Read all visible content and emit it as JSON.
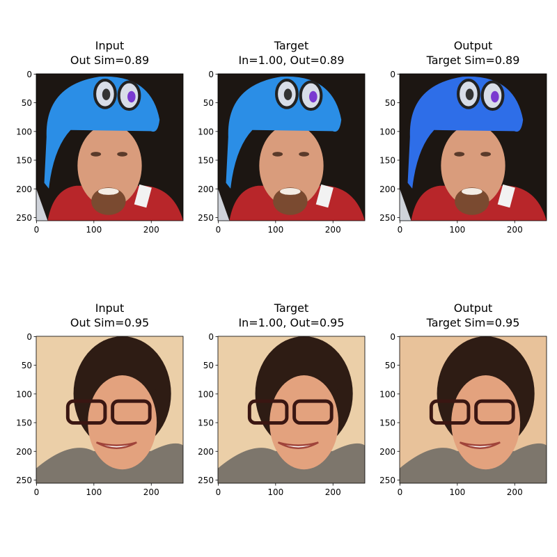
{
  "chart_data": [
    {
      "type": "image",
      "title": [
        "Input",
        "Out Sim=0.89"
      ],
      "xlim": [
        -0.5,
        255.5
      ],
      "ylim": [
        255.5,
        -0.5
      ],
      "xticks": [
        0,
        100,
        200
      ],
      "yticks": [
        0,
        50,
        100,
        150,
        200,
        250
      ]
    },
    {
      "type": "image",
      "title": [
        "Target",
        "In=1.00, Out=0.89"
      ],
      "xlim": [
        -0.5,
        255.5
      ],
      "ylim": [
        255.5,
        -0.5
      ],
      "xticks": [
        0,
        100,
        200
      ],
      "yticks": [
        0,
        50,
        100,
        150,
        200,
        250
      ]
    },
    {
      "type": "image",
      "title": [
        "Output",
        "Target Sim=0.89"
      ],
      "xlim": [
        -0.5,
        255.5
      ],
      "ylim": [
        255.5,
        -0.5
      ],
      "xticks": [
        0,
        100,
        200
      ],
      "yticks": [
        0,
        50,
        100,
        150,
        200,
        250
      ]
    },
    {
      "type": "image",
      "title": [
        "Input",
        "Out Sim=0.95"
      ],
      "xlim": [
        -0.5,
        255.5
      ],
      "ylim": [
        255.5,
        -0.5
      ],
      "xticks": [
        0,
        100,
        200
      ],
      "yticks": [
        0,
        50,
        100,
        150,
        200,
        250
      ]
    },
    {
      "type": "image",
      "title": [
        "Target",
        "In=1.00, Out=0.95"
      ],
      "xlim": [
        -0.5,
        255.5
      ],
      "ylim": [
        255.5,
        -0.5
      ],
      "xticks": [
        0,
        100,
        200
      ],
      "yticks": [
        0,
        50,
        100,
        150,
        200,
        250
      ]
    },
    {
      "type": "image",
      "title": [
        "Output",
        "Target Sim=0.95"
      ],
      "xlim": [
        -0.5,
        255.5
      ],
      "ylim": [
        255.5,
        -0.5
      ],
      "xticks": [
        0,
        100,
        200
      ],
      "yticks": [
        0,
        50,
        100,
        150,
        200,
        250
      ]
    }
  ]
}
